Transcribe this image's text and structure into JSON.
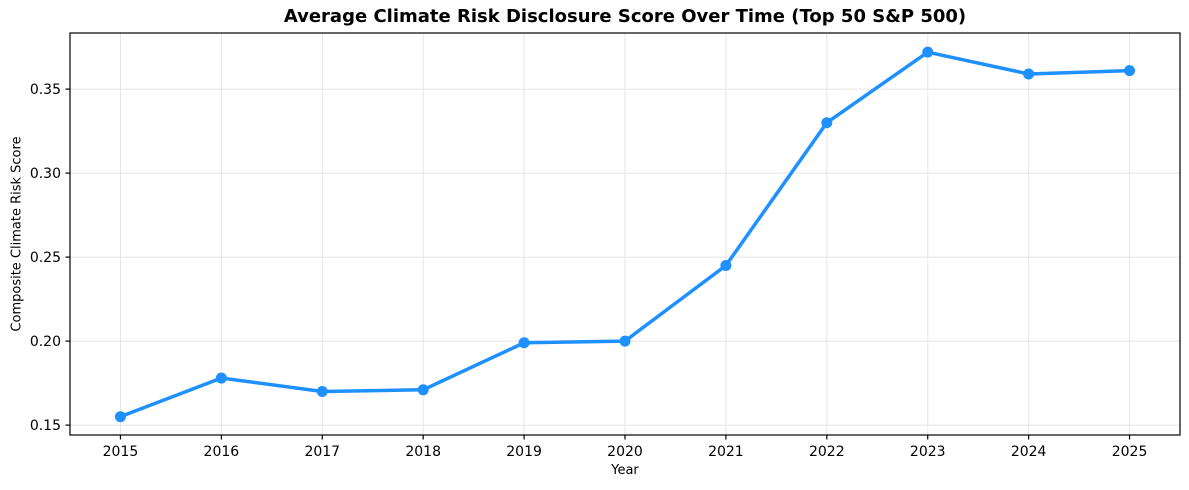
{
  "figure": {
    "title": "Average Climate Risk Disclosure Score Over Time (Top 50 S&P 500)",
    "xlabel": "Year",
    "ylabel": "Composite Climate Risk Score"
  },
  "chart_data": {
    "type": "line",
    "title": "Average Climate Risk Disclosure Score Over Time (Top 50 S&P 500)",
    "xlabel": "Year",
    "ylabel": "Composite Climate Risk Score",
    "x": [
      2015,
      2016,
      2017,
      2018,
      2019,
      2020,
      2021,
      2022,
      2023,
      2024,
      2025
    ],
    "values": [
      0.155,
      0.178,
      0.17,
      0.171,
      0.199,
      0.2,
      0.245,
      0.33,
      0.372,
      0.359,
      0.361
    ],
    "series_name": "Average Climate Risk Disclosure Score",
    "xticks": [
      2015,
      2016,
      2017,
      2018,
      2019,
      2020,
      2021,
      2022,
      2023,
      2024,
      2025
    ],
    "yticks": [
      0.15,
      0.2,
      0.25,
      0.3,
      0.35
    ],
    "xlim": [
      2014.5,
      2025.5
    ],
    "ylim": [
      0.1441,
      0.3834
    ],
    "grid": true,
    "legend": false,
    "line_color": "#1E90FF",
    "grid_color": "#e6e6e6",
    "spine_color": "#000000",
    "marker": "circle",
    "line_width": 3.5,
    "marker_radius": 5.5
  }
}
